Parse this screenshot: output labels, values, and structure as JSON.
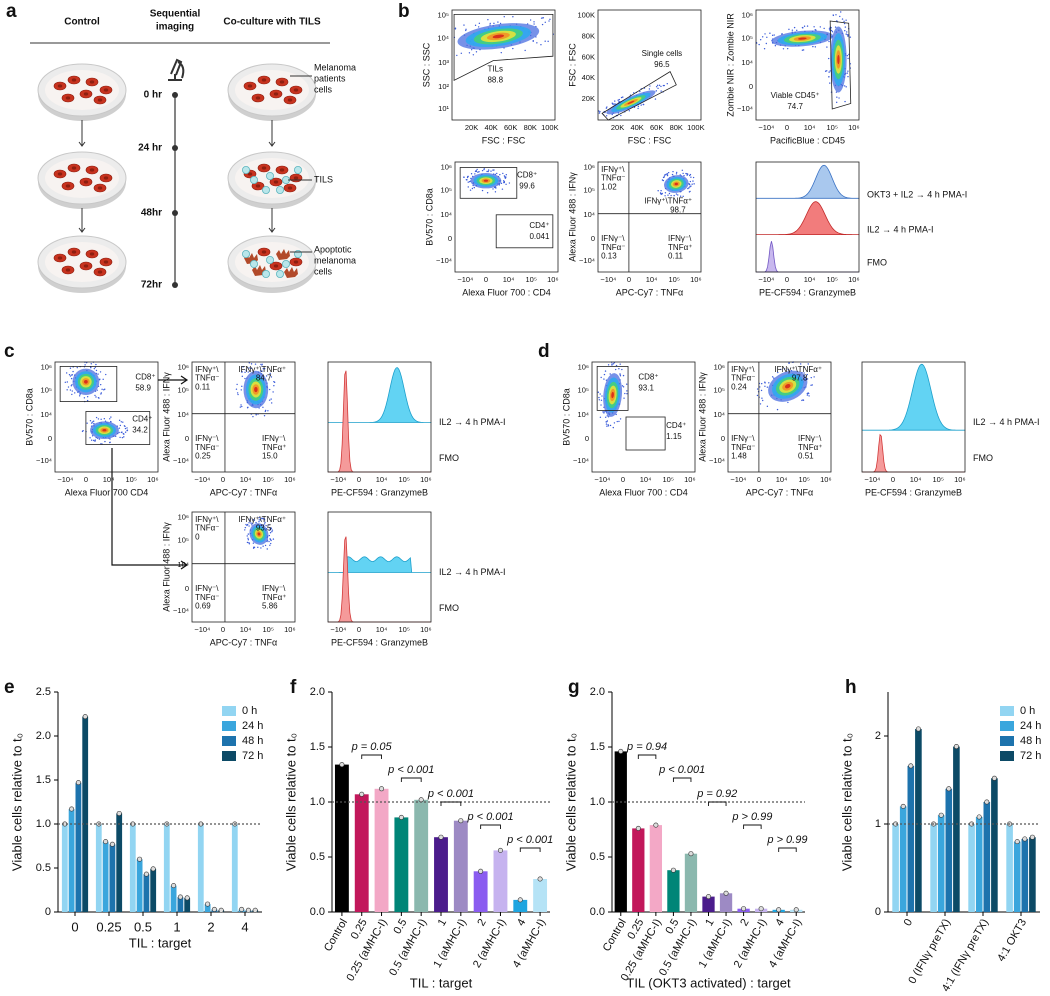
{
  "panel_labels": [
    "a",
    "b",
    "c",
    "d",
    "e",
    "f",
    "g",
    "h"
  ],
  "panel_a": {
    "control": "Control",
    "imaging": [
      "Sequential",
      "imaging"
    ],
    "coculture": "Co-culture with TILS",
    "times": [
      "0 hr",
      "24 hr",
      "48hr",
      "72hr"
    ],
    "melanoma": [
      "Melanoma",
      "patients",
      "cells"
    ],
    "tils": "TILS",
    "apoptotic": [
      "Apoptotic",
      "melanoma",
      "cells"
    ]
  },
  "flow": {
    "log_ticks": [
      "−10⁴",
      "0",
      "10⁴",
      "10⁵",
      "10⁶"
    ],
    "lin_ticks": [
      "20K",
      "40K",
      "60K",
      "80K",
      "100K"
    ],
    "b1": {
      "x_label": "FSC : FSC",
      "y_label": "SSC : SSC",
      "y_ticks": [
        "10¹",
        "10²",
        "10³",
        "10⁴",
        "10⁵"
      ],
      "gates": [
        "TILs",
        "88.8"
      ]
    },
    "b2": {
      "x_label": "FSC : FSC",
      "y_label": "FSC : FSC",
      "gates": [
        "Single cells",
        "96.5"
      ]
    },
    "b3": {
      "x_label": "PacificBlue : CD45",
      "y_label": "Zombie NIR : Zombie NIR",
      "gates": [
        "Viable CD45⁺",
        "74.7"
      ]
    },
    "b4": {
      "x_label": "Alexa Fluor 700 : CD4",
      "y_label": "BV570 : CD8a",
      "gates": [
        "CD8⁺",
        "99.6",
        "CD4⁺",
        "0.041"
      ]
    },
    "b5": {
      "x_label": "APC-Cy7 : TNFα",
      "y_label": "Alexa Fluor 488 : IFNγ",
      "gates": [
        "IFNγ⁺\\",
        "TNFα⁻",
        "1.02",
        "IFNγ⁺\\TNFα⁺",
        "98.7",
        "IFNγ⁻\\",
        "TNFα⁻",
        "0.13",
        "IFNγ⁻\\",
        "TNFα⁺",
        "0.11"
      ]
    },
    "b6": {
      "x_label": "PE-CF594 : GranzymeB",
      "legend": [
        "OKT3 + IL2 → 4 h PMA-I",
        "IL2 → 4 h PMA-I",
        "FMO"
      ]
    },
    "c1": {
      "x_label": "Alexa Fluor 700    CD4",
      "y_label": "BV570 : CD8a",
      "gates": [
        "CD8⁺",
        "58.9",
        "CD4⁺",
        "34.2"
      ]
    },
    "c2": {
      "x_label": "APC-Cy7 : TNFα",
      "y_label": "Alexa Fluor 488 : IFNγ",
      "gates": [
        "IFNγ⁺\\",
        "TNFα⁻",
        "0.11",
        "IFNγ⁺\\TNFα⁺",
        "84.7",
        "IFNγ⁻\\",
        "TNFα⁻",
        "0.25",
        "IFNγ⁻\\",
        "TNFα⁺",
        "15.0"
      ]
    },
    "c3": {
      "x_label": "PE-CF594 : GranzymeB",
      "legend": [
        "IL2 → 4 h PMA-I",
        "FMO"
      ]
    },
    "c4": {
      "x_label": "APC-Cy7 : TNFα",
      "y_label": "Alexa Fluor 488 : IFNγ",
      "gates": [
        "IFNγ⁺\\",
        "TNFα⁻",
        "0",
        "IFNγ⁺\\TNFα⁺",
        "93.5",
        "IFNγ⁻\\",
        "TNFα⁻",
        "0.69",
        "IFNγ⁻\\",
        "TNFα⁺",
        "5.86"
      ]
    },
    "c5": {
      "x_label": "PE-CF594 : GranzymeB",
      "legend": [
        "IL2 → 4 h PMA-I",
        "FMO"
      ]
    },
    "d1": {
      "x_label": "Alexa Fluor 700 : CD4",
      "y_label": "BV570 : CD8a",
      "gates": [
        "CD8⁺",
        "93.1",
        "CD4⁺",
        "1.15"
      ]
    },
    "d2": {
      "x_label": "APC-Cy7 : TNFα",
      "y_label": "Alexa Fluor 488 : IFNγ",
      "gates": [
        "IFNγ⁺\\",
        "TNFα⁻",
        "0.24",
        "IFNγ⁺\\TNFα⁺",
        "97.8",
        "IFNγ⁻\\",
        "TNFα⁻",
        "1.48",
        "IFNγ⁻\\",
        "TNFα⁺",
        "0.51"
      ]
    },
    "d3": {
      "x_label": "PE-CF594 : GranzymeB",
      "legend": [
        "IL2 → 4 h PMA-I",
        "FMO"
      ]
    }
  },
  "chart_data": [
    {
      "type": "grouped_bar",
      "y_label": "Viable cells relative to t₀",
      "x_label": "TIL : target",
      "categories": [
        "0",
        "0.25",
        "0.5",
        "1",
        "2",
        "4"
      ],
      "series": [
        {
          "name": "0 h",
          "color": "#92d5f2",
          "values": [
            1.0,
            1.0,
            1.0,
            1.0,
            1.0,
            1.0
          ]
        },
        {
          "name": "24 h",
          "color": "#3aa6dd",
          "values": [
            1.17,
            0.8,
            0.6,
            0.3,
            0.09,
            0.03
          ]
        },
        {
          "name": "48 h",
          "color": "#1d73ad",
          "values": [
            1.47,
            0.77,
            0.43,
            0.17,
            0.03,
            0.02
          ]
        },
        {
          "name": "72 h",
          "color": "#0c4a66",
          "values": [
            2.22,
            1.12,
            0.49,
            0.16,
            0.02,
            0.02
          ]
        }
      ],
      "ylim": [
        0,
        2.5
      ],
      "yticks": [
        0,
        0.5,
        {
          "value": 1,
          "label": "1.0"
        },
        1.5,
        {
          "value": 2,
          "label": "2.0"
        },
        2.5
      ],
      "reference_line": 1
    },
    {
      "type": "bar",
      "y_label": "Viable cells relative to t₀",
      "x_label": "TIL : target",
      "categories": [
        "Control",
        "0.25",
        "0.25 (aMHC-I)",
        "0.5",
        "0.5 (aMHC-I)",
        "1",
        "1 (aMHC-I)",
        "2",
        "2 (aMHC-I)",
        "4",
        "4 (aMHC-I)"
      ],
      "values": [
        1.34,
        1.07,
        1.12,
        0.86,
        1.02,
        0.68,
        0.83,
        0.37,
        0.56,
        0.11,
        0.3
      ],
      "colors": [
        "#000000",
        "#c2185b",
        "#f3a8c6",
        "#008577",
        "#8bb8ae",
        "#4b1c8c",
        "#9d8ac4",
        "#8a5cf0",
        "#c6b3ef",
        "#1ea5e0",
        "#b5e3f6"
      ],
      "annotations": [
        "p = 0.05",
        "p < 0.001",
        "p < 0.001",
        "p < 0.001",
        "p < 0.001"
      ],
      "ylim": [
        0,
        2
      ],
      "yticks": [
        {
          "value": 0,
          "label": "0.0"
        },
        0.5,
        {
          "value": 1,
          "label": "1.0"
        },
        1.5,
        {
          "value": 2,
          "label": "2.0"
        }
      ],
      "reference_line": 1
    },
    {
      "type": "bar",
      "y_label": "Viable cells relative to t₀",
      "x_label": "TIL (OKT3 activated) : target",
      "categories": [
        "Control",
        "0.25",
        "0.25 (aMHC-I)",
        "0.5",
        "0.5 (aMHC-I)",
        "1",
        "1 (aMHC-I)",
        "2",
        "2 (aMHC-I)",
        "4",
        "4 (aMHC-I)"
      ],
      "values": [
        1.46,
        0.76,
        0.79,
        0.38,
        0.53,
        0.14,
        0.17,
        0.03,
        0.03,
        0.02,
        0.02
      ],
      "colors": [
        "#000000",
        "#c2185b",
        "#f3a8c6",
        "#008577",
        "#8bb8ae",
        "#4b1c8c",
        "#9d8ac4",
        "#8a5cf0",
        "#c6b3ef",
        "#1ea5e0",
        "#b5e3f6"
      ],
      "annotations": [
        "p = 0.94",
        "p < 0.001",
        "p = 0.92",
        "p > 0.99",
        "p > 0.99"
      ],
      "ylim": [
        0,
        2
      ],
      "yticks": [
        {
          "value": 0,
          "label": "0.0"
        },
        0.5,
        {
          "value": 1,
          "label": "1.0"
        },
        1.5,
        {
          "value": 2,
          "label": "2.0"
        }
      ],
      "reference_line": 1
    },
    {
      "type": "grouped_bar",
      "y_label": "Viable cells relative to t₀",
      "categories": [
        "0",
        "0 (IFNγ preTX)",
        "4:1 (IFNγ preTX)",
        "4:1 OKT3"
      ],
      "series": [
        {
          "name": "0 h",
          "color": "#92d5f2",
          "values": [
            1.0,
            1.0,
            1.0,
            1.0
          ]
        },
        {
          "name": "24 h",
          "color": "#3aa6dd",
          "values": [
            1.2,
            1.1,
            1.08,
            0.8
          ]
        },
        {
          "name": "48 h",
          "color": "#1d73ad",
          "values": [
            1.66,
            1.4,
            1.25,
            0.83
          ]
        },
        {
          "name": "72 h",
          "color": "#0c4a66",
          "values": [
            2.08,
            1.88,
            1.52,
            0.85
          ]
        }
      ],
      "ylim": [
        0,
        2.5
      ],
      "yticks": [
        0,
        1,
        2
      ],
      "reference_line": 1
    }
  ]
}
